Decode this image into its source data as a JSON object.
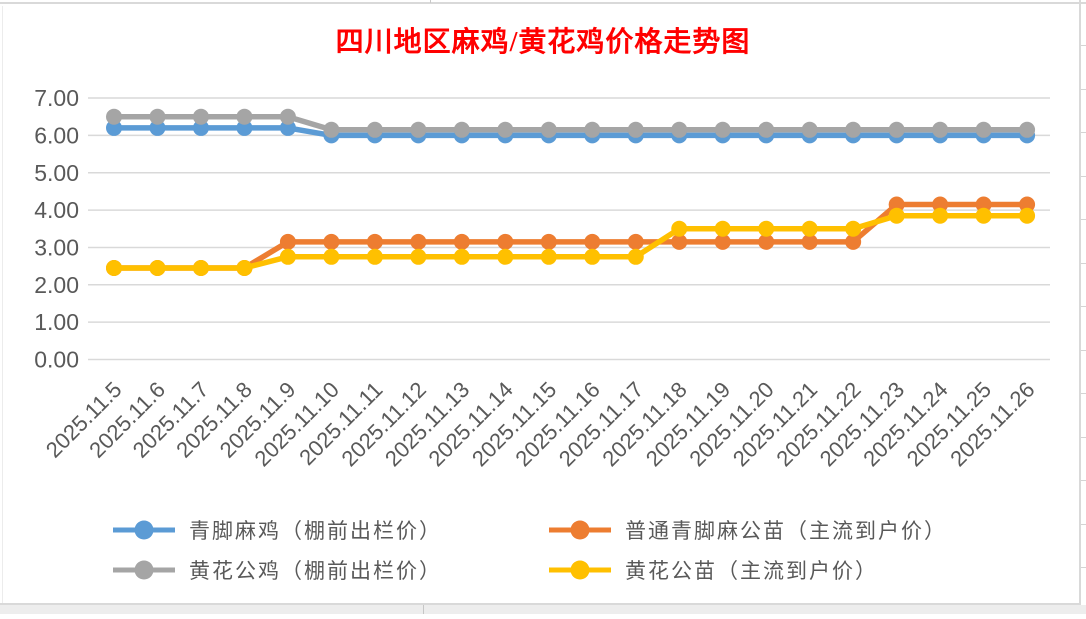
{
  "title": {
    "text": "四川地区麻鸡/黄花鸡价格走势图",
    "color": "#FF0000"
  },
  "chart_data": {
    "type": "line",
    "title": "四川地区麻鸡/黄花鸡价格走势图",
    "categories": [
      "2025.11.5",
      "2025.11.6",
      "2025.11.7",
      "2025.11.8",
      "2025.11.9",
      "2025.11.10",
      "2025.11.11",
      "2025.11.12",
      "2025.11.13",
      "2025.11.14",
      "2025.11.15",
      "2025.11.16",
      "2025.11.17",
      "2025.11.18",
      "2025.11.19",
      "2025.11.20",
      "2025.11.21",
      "2025.11.22",
      "2025.11.23",
      "2025.11.24",
      "2025.11.25",
      "2025.11.26"
    ],
    "series": [
      {
        "name": "青脚麻鸡（棚前出栏价）",
        "color": "#5B9BD5",
        "values": [
          6.2,
          6.2,
          6.2,
          6.2,
          6.2,
          6.0,
          6.0,
          6.0,
          6.0,
          6.0,
          6.0,
          6.0,
          6.0,
          6.0,
          6.0,
          6.0,
          6.0,
          6.0,
          6.0,
          6.0,
          6.0,
          6.0
        ]
      },
      {
        "name": "普通青脚麻公苗（主流到户价）",
        "color": "#ED7D31",
        "values": [
          2.45,
          2.45,
          2.45,
          2.45,
          3.15,
          3.15,
          3.15,
          3.15,
          3.15,
          3.15,
          3.15,
          3.15,
          3.15,
          3.15,
          3.15,
          3.15,
          3.15,
          3.15,
          4.15,
          4.15,
          4.15,
          4.15
        ]
      },
      {
        "name": "黄花公鸡（棚前出栏价）",
        "color": "#A5A5A5",
        "values": [
          6.5,
          6.5,
          6.5,
          6.5,
          6.5,
          6.15,
          6.15,
          6.15,
          6.15,
          6.15,
          6.15,
          6.15,
          6.15,
          6.15,
          6.15,
          6.15,
          6.15,
          6.15,
          6.15,
          6.15,
          6.15,
          6.15
        ]
      },
      {
        "name": "黄花公苗（主流到户价）",
        "color": "#FFC000",
        "values": [
          2.45,
          2.45,
          2.45,
          2.45,
          2.75,
          2.75,
          2.75,
          2.75,
          2.75,
          2.75,
          2.75,
          2.75,
          2.75,
          3.5,
          3.5,
          3.5,
          3.5,
          3.5,
          3.85,
          3.85,
          3.85,
          3.85
        ]
      }
    ],
    "ylim": [
      0,
      7
    ],
    "y_ticks": [
      "7.00",
      "6.00",
      "5.00",
      "4.00",
      "3.00",
      "2.00",
      "1.00",
      "0.00"
    ],
    "grid": true,
    "legend_position": "bottom",
    "axis_label_color": "#595959",
    "gridline_color": "#D9D9D9"
  }
}
